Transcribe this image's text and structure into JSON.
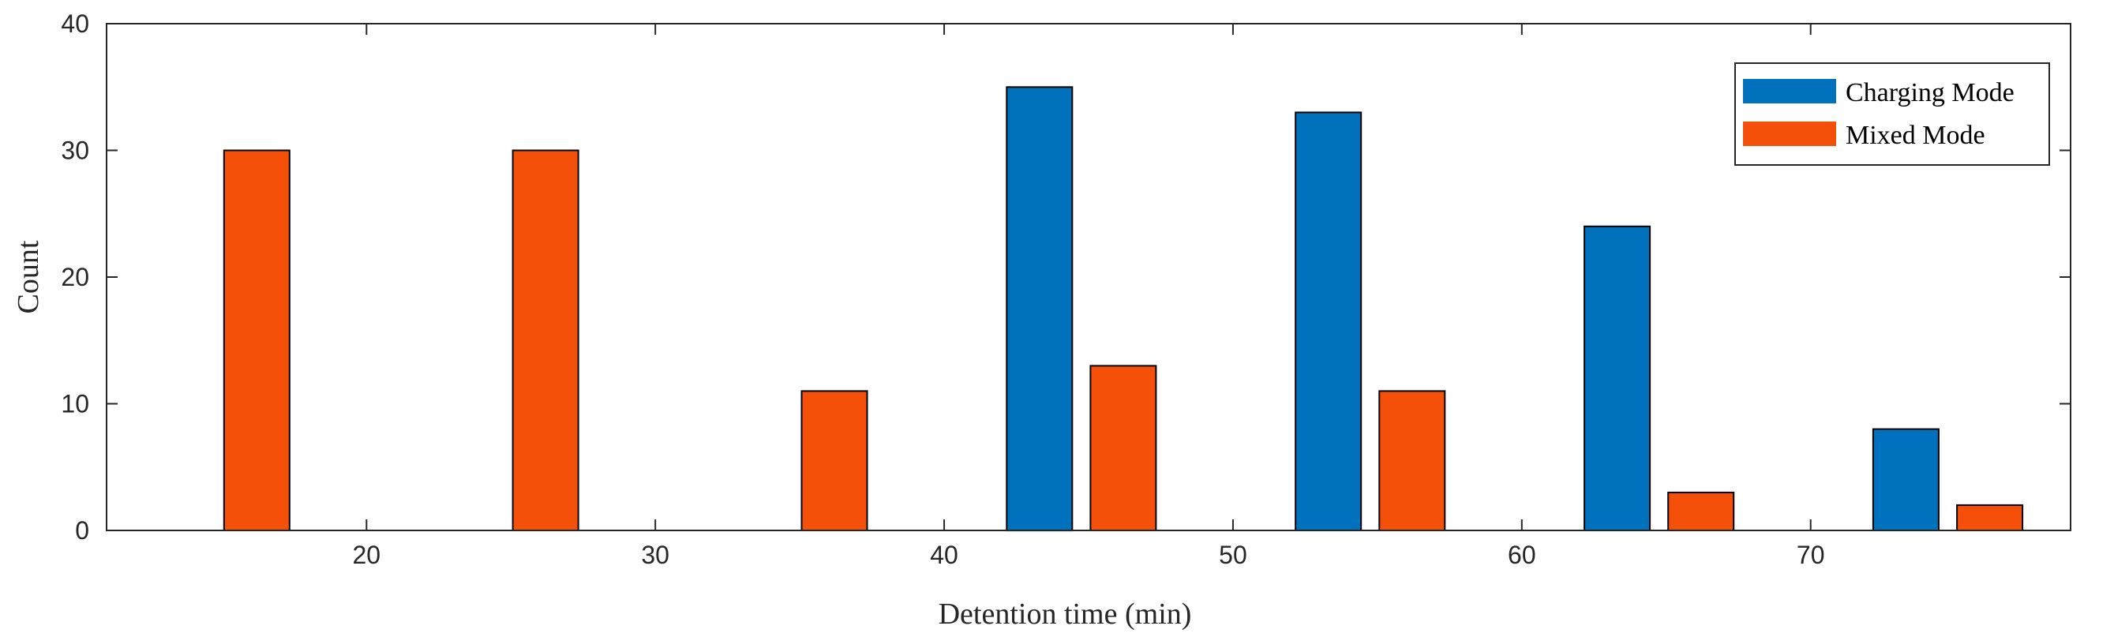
{
  "chart_data": {
    "type": "bar",
    "xlabel": "Detention time (min)",
    "ylabel": "Count",
    "xlim": [
      11,
      79
    ],
    "ylim": [
      0,
      40
    ],
    "xticks": [
      20,
      30,
      40,
      50,
      60,
      70
    ],
    "yticks": [
      0,
      10,
      20,
      30,
      40
    ],
    "grid": false,
    "legend_position": "top-right",
    "series": [
      {
        "name": "Charging Mode",
        "color": "#0072BD",
        "points": [
          {
            "x": 43.3,
            "y": 35
          },
          {
            "x": 53.3,
            "y": 33
          },
          {
            "x": 63.3,
            "y": 24
          },
          {
            "x": 73.3,
            "y": 8
          }
        ]
      },
      {
        "name": "Mixed Mode",
        "color": "#F5500A",
        "points": [
          {
            "x": 16.2,
            "y": 30
          },
          {
            "x": 26.2,
            "y": 30
          },
          {
            "x": 36.2,
            "y": 11
          },
          {
            "x": 46.2,
            "y": 13
          },
          {
            "x": 56.2,
            "y": 11
          },
          {
            "x": 66.2,
            "y": 3
          },
          {
            "x": 76.2,
            "y": 2
          }
        ]
      }
    ]
  }
}
